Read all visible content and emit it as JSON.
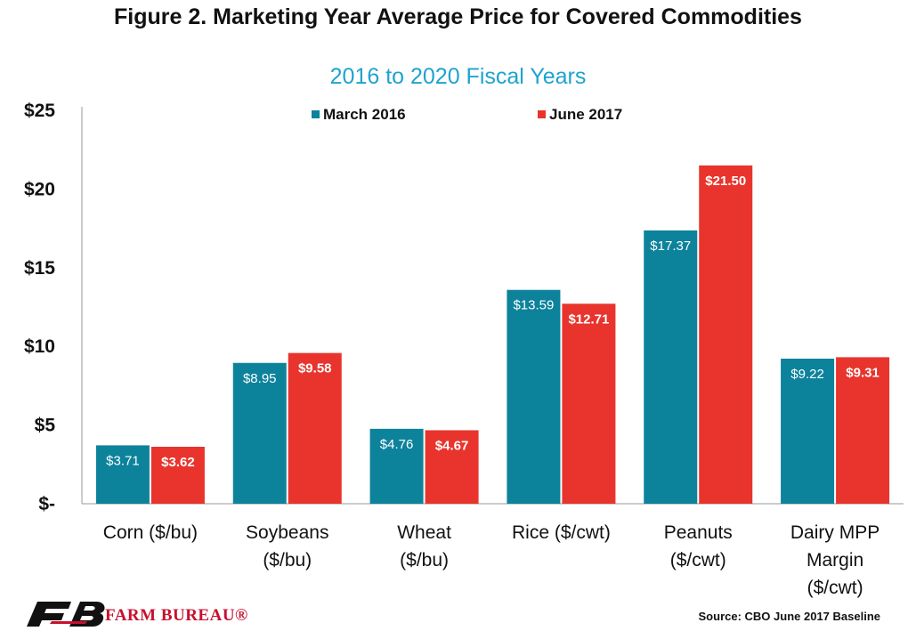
{
  "title": "Figure 2. Marketing Year Average Price for Covered Commodities",
  "subtitle": "2016 to 2020 Fiscal Years",
  "source": "Source: CBO June 2017 Baseline",
  "logo": {
    "text": "FARM BUREAU®",
    "icon": "farm-bureau-fb-logo"
  },
  "colors": {
    "series_a": "#0d829b",
    "series_b": "#e8342c",
    "subtitle": "#1da3cf"
  },
  "chart_data": {
    "type": "bar",
    "title": "Figure 2. Marketing Year Average Price for Covered Commodities",
    "subtitle": "2016 to 2020 Fiscal Years",
    "categories": [
      [
        "Corn ($/bu)"
      ],
      [
        "Soybeans",
        "($/bu)"
      ],
      [
        "Wheat",
        "($/bu)"
      ],
      [
        "Rice ($/cwt)"
      ],
      [
        "Peanuts",
        "($/cwt)"
      ],
      [
        "Dairy MPP",
        "Margin",
        "($/cwt)"
      ]
    ],
    "series": [
      {
        "name": "March 2016",
        "values": [
          3.71,
          8.95,
          4.76,
          13.59,
          17.37,
          9.22
        ],
        "labels": [
          "$3.71",
          "$8.95",
          "$4.76",
          "$13.59",
          "$17.37",
          "$9.22"
        ]
      },
      {
        "name": "June 2017",
        "values": [
          3.62,
          9.58,
          4.67,
          12.71,
          21.5,
          9.31
        ],
        "labels": [
          "$3.62",
          "$9.58",
          "$4.67",
          "$12.71",
          "$21.50",
          "$9.31"
        ]
      }
    ],
    "yticks": [
      0,
      5,
      10,
      15,
      20,
      25
    ],
    "ytick_labels": [
      "$-",
      "$5",
      "$10",
      "$15",
      "$20",
      "$25"
    ],
    "ylim": [
      0,
      25
    ],
    "grid": false,
    "legend_position": "top-center"
  }
}
